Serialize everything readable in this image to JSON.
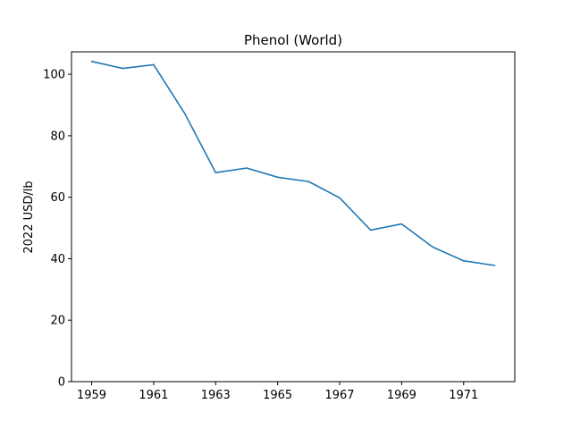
{
  "chart_data": {
    "type": "line",
    "title": "Phenol (World)",
    "xlabel": "",
    "ylabel": "2022 USD/lb",
    "x": [
      1959,
      1960,
      1961,
      1962,
      1963,
      1964,
      1965,
      1966,
      1967,
      1968,
      1969,
      1970,
      1971,
      1972
    ],
    "series": [
      {
        "values": [
          104.2,
          101.9,
          103.1,
          87.3,
          68.0,
          69.5,
          66.5,
          65.1,
          59.8,
          49.3,
          51.3,
          43.8,
          39.3,
          37.8
        ],
        "color": "#1f77b4"
      }
    ],
    "xticks": [
      1959,
      1961,
      1963,
      1965,
      1967,
      1969,
      1971
    ],
    "yticks": [
      0,
      20,
      40,
      60,
      80,
      100
    ],
    "xlim": [
      1958.35,
      1972.65
    ],
    "ylim": [
      0,
      107.3
    ],
    "grid": false,
    "legend": "none"
  }
}
